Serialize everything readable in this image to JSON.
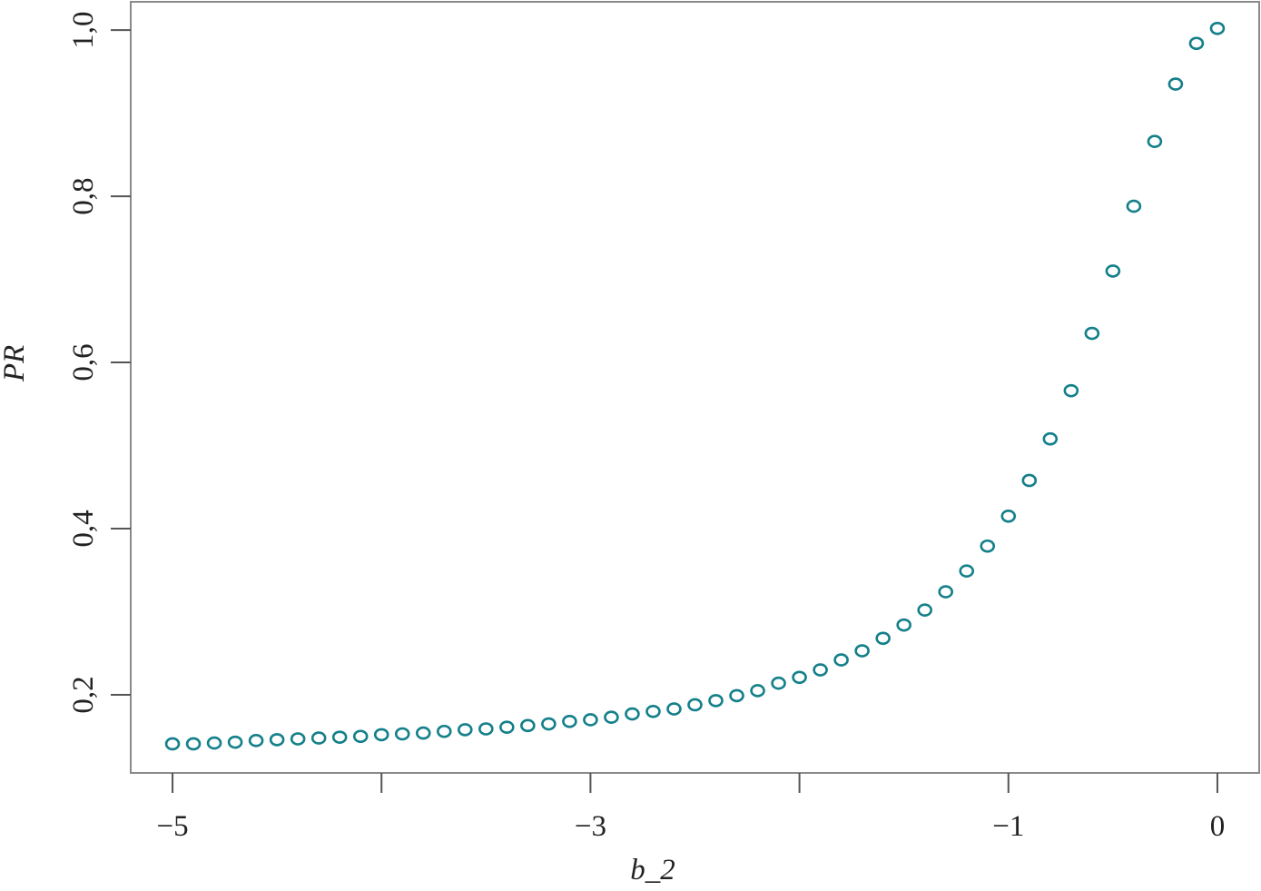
{
  "chart_data": {
    "type": "scatter",
    "xlabel": "b_2",
    "ylabel": "PR",
    "color": "#14808a",
    "xlim": [
      -5.2,
      0.2
    ],
    "ylim": [
      0.106,
      1.034
    ],
    "xticks": [
      {
        "value": -5,
        "label": "−5"
      },
      {
        "value": -4,
        "label": null
      },
      {
        "value": -3,
        "label": "−3"
      },
      {
        "value": -2,
        "label": null
      },
      {
        "value": -1,
        "label": "−1"
      },
      0
    ],
    "yticks": [
      {
        "value": 0.2,
        "label": "0,2"
      },
      {
        "value": 0.4,
        "label": "0,4"
      },
      {
        "value": 0.6,
        "label": "0,6"
      },
      {
        "value": 0.8,
        "label": "0,8"
      },
      {
        "value": 1.0,
        "label": "1,0"
      }
    ],
    "x": [
      -5,
      -4.9,
      -4.8,
      -4.7,
      -4.6,
      -4.5,
      -4.4,
      -4.3,
      -4.2,
      -4.1,
      -4,
      -3.9,
      -3.8,
      -3.7,
      -3.6,
      -3.5,
      -3.4,
      -3.3,
      -3.2,
      -3.1,
      -3,
      -2.9,
      -2.8,
      -2.7,
      -2.6,
      -2.5,
      -2.4,
      -2.3,
      -2.2,
      -2.1,
      -2,
      -1.9,
      -1.8,
      -1.7,
      -1.6,
      -1.5,
      -1.4,
      -1.3,
      -1.2,
      -1.1,
      -1,
      -0.9,
      -0.8,
      -0.7,
      -0.6,
      -0.5,
      -0.4,
      -0.3,
      -0.2,
      -0.1,
      0
    ],
    "values": [
      0.141,
      0.141,
      0.142,
      0.143,
      0.145,
      0.146,
      0.147,
      0.148,
      0.149,
      0.15,
      0.152,
      0.153,
      0.154,
      0.156,
      0.158,
      0.159,
      0.161,
      0.163,
      0.165,
      0.168,
      0.17,
      0.173,
      0.177,
      0.18,
      0.183,
      0.188,
      0.193,
      0.199,
      0.205,
      0.214,
      0.221,
      0.23,
      0.242,
      0.253,
      0.268,
      0.284,
      0.302,
      0.324,
      0.349,
      0.379,
      0.415,
      0.458,
      0.508,
      0.566,
      0.635,
      0.71,
      0.788,
      0.866,
      0.935,
      0.984,
      1.002
    ]
  }
}
